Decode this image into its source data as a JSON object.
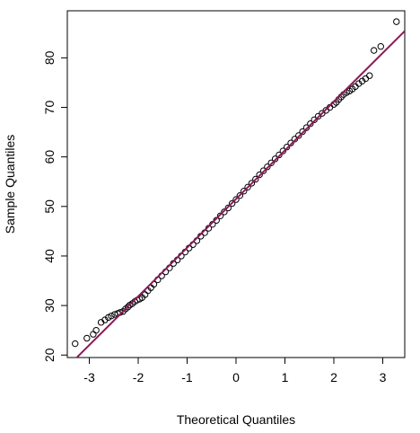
{
  "chart_data": {
    "type": "scatter",
    "title": "",
    "xlabel": "Theoretical Quantiles",
    "ylabel": "Sample Quantiles",
    "xlim": [
      -3.45,
      3.45
    ],
    "ylim": [
      19.5,
      89.5
    ],
    "xticks": [
      -3,
      -2,
      -1,
      0,
      1,
      2,
      3
    ],
    "yticks": [
      20,
      30,
      40,
      50,
      60,
      70,
      80
    ],
    "grid": false,
    "legend": "none",
    "point_color": "#000000",
    "reference_line": {
      "color": "#8B1A5A",
      "start": {
        "x": -3.45,
        "y": 17.6
      },
      "end": {
        "x": 3.45,
        "y": 85.4
      }
    },
    "series": [
      {
        "x": [
          -3.29,
          -3.05,
          -2.92,
          -2.86,
          -2.76,
          -2.68,
          -2.61,
          -2.55,
          -2.48,
          -2.42,
          -2.37,
          -2.31,
          -2.26,
          -2.21,
          -2.17,
          -2.12,
          -2.07,
          -2.02,
          -1.97,
          -1.92,
          -1.86,
          -1.8,
          -1.74,
          -1.68,
          -1.6,
          -1.52,
          -1.44,
          -1.36,
          -1.28,
          -1.2,
          -1.12,
          -1.04,
          -0.96,
          -0.88,
          -0.8,
          -0.72,
          -0.64,
          -0.56,
          -0.48,
          -0.4,
          -0.32,
          -0.24,
          -0.16,
          -0.08,
          0.0,
          0.08,
          0.16,
          0.24,
          0.32,
          0.4,
          0.48,
          0.56,
          0.64,
          0.72,
          0.8,
          0.88,
          0.96,
          1.04,
          1.12,
          1.2,
          1.28,
          1.36,
          1.44,
          1.52,
          1.6,
          1.68,
          1.76,
          1.84,
          1.92,
          2.0,
          2.05,
          2.1,
          2.15,
          2.2,
          2.26,
          2.32,
          2.38,
          2.44,
          2.51,
          2.58,
          2.65,
          2.73,
          2.82,
          2.96,
          3.28
        ],
        "y": [
          22.3,
          23.4,
          24.2,
          25.0,
          26.6,
          27.1,
          27.6,
          27.9,
          28.2,
          28.4,
          28.6,
          28.8,
          29.3,
          29.7,
          30.1,
          30.4,
          30.8,
          31.1,
          31.3,
          31.6,
          32.2,
          33.0,
          33.6,
          34.3,
          35.2,
          36.0,
          36.8,
          37.6,
          38.5,
          39.2,
          40.0,
          40.8,
          41.6,
          42.3,
          43.1,
          44.0,
          44.7,
          45.6,
          46.4,
          47.2,
          48.1,
          48.9,
          49.7,
          50.6,
          51.4,
          52.2,
          53.1,
          53.9,
          54.7,
          55.5,
          56.4,
          57.2,
          58.0,
          58.8,
          59.6,
          60.4,
          61.2,
          62.0,
          62.8,
          63.6,
          64.3,
          65.1,
          65.9,
          66.7,
          67.5,
          68.2,
          68.8,
          69.4,
          70.0,
          70.6,
          71.0,
          71.6,
          72.1,
          72.6,
          73.0,
          73.3,
          73.7,
          74.2,
          74.8,
          75.3,
          75.8,
          76.4,
          81.5,
          82.3,
          87.3
        ]
      }
    ]
  }
}
